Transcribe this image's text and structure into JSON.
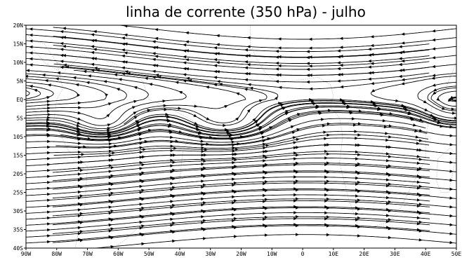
{
  "map": {
    "title": "linha de corrente (350 hPa) - julho",
    "projection": "equirectangular",
    "lon_range": [
      -90,
      50
    ],
    "lat_range": [
      -40,
      20
    ],
    "lat_ticks": [
      {
        "value": 20,
        "label": "20N"
      },
      {
        "value": 15,
        "label": "15N"
      },
      {
        "value": 10,
        "label": "10N"
      },
      {
        "value": 5,
        "label": "5N"
      },
      {
        "value": 0,
        "label": "EQ"
      },
      {
        "value": -5,
        "label": "5S"
      },
      {
        "value": -10,
        "label": "10S"
      },
      {
        "value": -15,
        "label": "15S"
      },
      {
        "value": -20,
        "label": "20S"
      },
      {
        "value": -25,
        "label": "25S"
      },
      {
        "value": -30,
        "label": "30S"
      },
      {
        "value": -35,
        "label": "35S"
      },
      {
        "value": -40,
        "label": "40S"
      }
    ],
    "lon_ticks": [
      {
        "value": -90,
        "label": "90W"
      },
      {
        "value": -80,
        "label": "80W"
      },
      {
        "value": -70,
        "label": "70W"
      },
      {
        "value": -60,
        "label": "60W"
      },
      {
        "value": -50,
        "label": "50W"
      },
      {
        "value": -40,
        "label": "40W"
      },
      {
        "value": -30,
        "label": "30W"
      },
      {
        "value": -20,
        "label": "20W"
      },
      {
        "value": -10,
        "label": "10W"
      },
      {
        "value": 0,
        "label": "0"
      },
      {
        "value": 10,
        "label": "10E"
      },
      {
        "value": 20,
        "label": "20E"
      },
      {
        "value": 30,
        "label": "30E"
      },
      {
        "value": 40,
        "label": "40E"
      },
      {
        "value": 50,
        "label": "50E"
      }
    ],
    "colors": {
      "streamline": "#000000",
      "coastline": "#b8b8b8",
      "frame": "#000000",
      "background": "#ffffff"
    },
    "features": {
      "anticyclones": [
        {
          "name": "upper-level anticyclone west",
          "lon": -64,
          "lat": -8
        },
        {
          "name": "upper-level anticyclone central",
          "lon": -24,
          "lat": -8
        },
        {
          "name": "upper-level anticyclone east",
          "lon": 48,
          "lat": -3
        }
      ]
    }
  }
}
